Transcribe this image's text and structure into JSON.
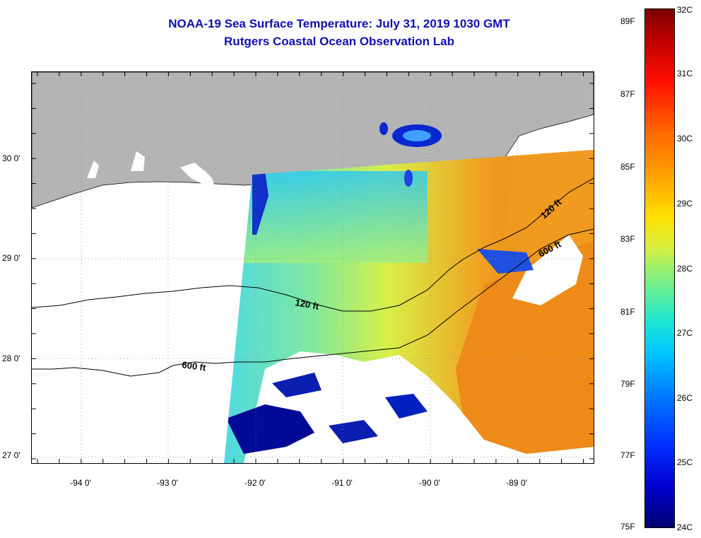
{
  "title": {
    "line1": "NOAA-19 Sea Surface Temperature:  July 31, 2019 1030 GMT",
    "line2": "Rutgers Coastal Ocean Observation Lab"
  },
  "map": {
    "lat_labels": [
      "30 0'",
      "29 0'",
      "28 0'",
      "27 0'"
    ],
    "lon_labels": [
      "-94 0'",
      "-93 0'",
      "-92 0'",
      "-91 0'",
      "-90 0'",
      "-89 0'"
    ],
    "isobaths": [
      {
        "label": "120 ft"
      },
      {
        "label": "600 ft"
      },
      {
        "label": "120 ft"
      },
      {
        "label": "600 ft"
      }
    ],
    "colors": {
      "land": "#b4b4b4",
      "cold": "#000a96",
      "cool": "#00c8ff",
      "mid": "#60e0a0",
      "warm": "#e6f040",
      "hot": "#f08a10"
    }
  },
  "colorbar": {
    "fahrenheit_labels": [
      "89F",
      "87F",
      "85F",
      "83F",
      "81F",
      "79F",
      "77F",
      "75F"
    ],
    "celsius_labels": [
      "32C",
      "31C",
      "30C",
      "29C",
      "28C",
      "27C",
      "26C",
      "25C",
      "24C"
    ],
    "scale_min_c": 24,
    "scale_max_c": 32
  }
}
